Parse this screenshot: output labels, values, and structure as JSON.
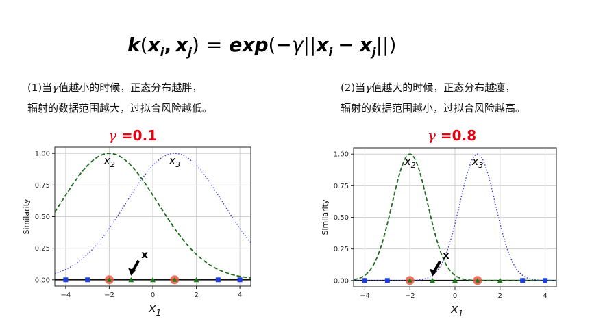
{
  "formula": {
    "text": "k(xi, xj) = exp(−γ||xi − xj||)"
  },
  "notes": {
    "left": {
      "prefix": "(1)当",
      "gamma": "γ",
      "line1_rest": "值越小的时候，正态分布越胖，",
      "line2": "辐射的数据范围越大，过拟合风险越低。"
    },
    "right": {
      "prefix": "(2)当",
      "gamma": "γ",
      "line1_rest": "值越大的时候，正态分布越瘦，",
      "line2": "辐射的数据范围越小，过拟合风险越高。"
    }
  },
  "titles": {
    "left": {
      "gamma_symbol": "γ",
      "label": " =0.1"
    },
    "right": {
      "gamma_symbol": "γ",
      "label": " =0.8"
    }
  },
  "colors": {
    "red_title": "#e60012",
    "x2_curve": "#1e6b1e",
    "x3_curve": "#3a3ad6",
    "blue_square": "#1f3fe0",
    "green_triangle": "#1d7a1d",
    "red_circle": "#e8503a"
  },
  "chart_data": [
    {
      "type": "line",
      "gamma": 0.1,
      "xlabel": "x1",
      "ylabel": "Similarity",
      "xlim": [
        -4.5,
        4.5
      ],
      "ylim": [
        -0.05,
        1.05
      ],
      "xticks": [
        -4,
        -2,
        0,
        2,
        4
      ],
      "yticks": [
        0.0,
        0.25,
        0.5,
        0.75,
        1.0
      ],
      "ytick_labels": [
        "0.00",
        "0.25",
        "0.50",
        "0.75",
        "1.00"
      ],
      "grid": true,
      "series": [
        {
          "name": "x2",
          "center": -2,
          "style": "dashed"
        },
        {
          "name": "x3",
          "center": 1,
          "style": "dotted"
        }
      ],
      "points_blue_square": [
        -4,
        -3,
        3,
        4
      ],
      "points_green_triangle": [
        -1,
        0,
        2
      ],
      "landmarks_red_circle": [
        -2,
        1
      ],
      "annotation": {
        "label": "x",
        "point_x": -1
      }
    },
    {
      "type": "line",
      "gamma": 0.8,
      "xlabel": "x1",
      "ylabel": "Similarity",
      "xlim": [
        -4.5,
        4.5
      ],
      "ylim": [
        -0.05,
        1.05
      ],
      "xticks": [
        -4,
        -2,
        0,
        2,
        4
      ],
      "yticks": [
        0.0,
        0.25,
        0.5,
        0.75,
        1.0
      ],
      "ytick_labels": [
        "0.00",
        "0.25",
        "0.50",
        "0.75",
        "1.00"
      ],
      "grid": true,
      "series": [
        {
          "name": "x2",
          "center": -2,
          "style": "dashed"
        },
        {
          "name": "x3",
          "center": 1,
          "style": "dotted"
        }
      ],
      "points_blue_square": [
        -4,
        -3,
        3,
        4
      ],
      "points_green_triangle": [
        -1,
        0,
        2
      ],
      "landmarks_red_circle": [
        -2,
        1
      ],
      "annotation": {
        "label": "x",
        "point_x": -1
      }
    }
  ]
}
